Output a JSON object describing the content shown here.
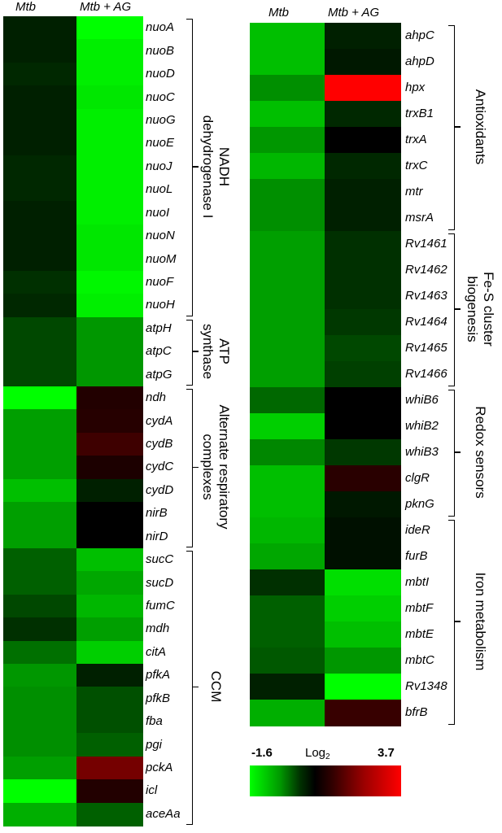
{
  "heatmap": {
    "column_headers": [
      "Mtb",
      "Mtb + AG"
    ],
    "left_panel": {
      "genes": [
        "nuoA",
        "nuoB",
        "nuoD",
        "nuoC",
        "nuoG",
        "nuoE",
        "nuoJ",
        "nuoL",
        "nuoI",
        "nuoN",
        "nuoM",
        "nuoF",
        "nuoH",
        "atpH",
        "atpC",
        "atpG",
        "ndh",
        "cydA",
        "cydB",
        "cydC",
        "cydD",
        "nirB",
        "nirD",
        "sucC",
        "sucD",
        "fumC",
        "mdh",
        "citA",
        "pfkA",
        "pfkB",
        "fba",
        "pgi",
        "pckA",
        "icl",
        "aceAa"
      ],
      "values": [
        [
          -0.2,
          -1.6
        ],
        [
          -0.2,
          -1.5
        ],
        [
          -0.25,
          -1.5
        ],
        [
          -0.2,
          -1.45
        ],
        [
          -0.2,
          -1.5
        ],
        [
          -0.2,
          -1.5
        ],
        [
          -0.25,
          -1.5
        ],
        [
          -0.25,
          -1.5
        ],
        [
          -0.2,
          -1.5
        ],
        [
          -0.2,
          -1.45
        ],
        [
          -0.2,
          -1.45
        ],
        [
          -0.3,
          -1.55
        ],
        [
          -0.25,
          -1.5
        ],
        [
          -0.45,
          -0.95
        ],
        [
          -0.45,
          -0.95
        ],
        [
          -0.45,
          -0.95
        ],
        [
          -1.6,
          0.5
        ],
        [
          -1.0,
          0.55
        ],
        [
          -1.0,
          0.9
        ],
        [
          -1.0,
          0.4
        ],
        [
          -1.2,
          -0.2
        ],
        [
          -1.0,
          0.0
        ],
        [
          -1.0,
          0.0
        ],
        [
          -0.6,
          -1.2
        ],
        [
          -0.6,
          -1.05
        ],
        [
          -0.45,
          -1.15
        ],
        [
          -0.3,
          -1.0
        ],
        [
          -0.7,
          -1.3
        ],
        [
          -0.95,
          -0.2
        ],
        [
          -0.9,
          -0.5
        ],
        [
          -0.9,
          -0.5
        ],
        [
          -0.9,
          -0.6
        ],
        [
          -1.0,
          1.7
        ],
        [
          -1.6,
          0.5
        ],
        [
          -1.1,
          -0.6
        ]
      ],
      "groups": [
        {
          "label": "NADH dehydrogenase I",
          "lines": [
            "NADH",
            "dehydrogenase I"
          ]
        },
        {
          "label": "ATP synthase",
          "lines": [
            "ATP",
            "synthase"
          ]
        },
        {
          "label": "Alternate respiratory complexes",
          "lines": [
            "Alternate respiratory",
            "complexes"
          ]
        },
        {
          "label": "CCM",
          "lines": [
            "CCM"
          ]
        }
      ]
    },
    "right_panel": {
      "genes": [
        "ahpC",
        "ahpD",
        "hpx",
        "trxB1",
        "trxA",
        "trxC",
        "mtr",
        "msrA",
        "Rv1461",
        "Rv1462",
        "Rv1463",
        "Rv1464",
        "Rv1465",
        "Rv1466",
        "whiB6",
        "whiB2",
        "whiB3",
        "clgR",
        "pknG",
        "ideR",
        "furB",
        "mbtI",
        "mbtF",
        "mbtE",
        "mbtC",
        "Rv1348",
        "bfrB"
      ],
      "values": [
        [
          -1.2,
          -0.2
        ],
        [
          -1.2,
          -0.15
        ],
        [
          -0.9,
          3.7
        ],
        [
          -1.2,
          -0.25
        ],
        [
          -0.95,
          0.0
        ],
        [
          -1.15,
          -0.25
        ],
        [
          -0.9,
          -0.2
        ],
        [
          -0.9,
          -0.2
        ],
        [
          -1.0,
          -0.3
        ],
        [
          -1.0,
          -0.3
        ],
        [
          -1.0,
          -0.3
        ],
        [
          -1.0,
          -0.35
        ],
        [
          -1.0,
          -0.45
        ],
        [
          -1.0,
          -0.4
        ],
        [
          -0.65,
          0.0
        ],
        [
          -1.3,
          0.0
        ],
        [
          -0.85,
          -0.35
        ],
        [
          -1.2,
          0.6
        ],
        [
          -1.2,
          -0.15
        ],
        [
          -1.15,
          -0.1
        ],
        [
          -1.05,
          -0.1
        ],
        [
          -0.3,
          -1.4
        ],
        [
          -0.6,
          -1.3
        ],
        [
          -0.6,
          -1.2
        ],
        [
          -0.55,
          -0.95
        ],
        [
          -0.2,
          -1.6
        ],
        [
          -1.1,
          0.8
        ]
      ],
      "groups": [
        {
          "label": "Antioxidants",
          "lines": [
            "Antioxidants"
          ]
        },
        {
          "label": "Fe-S cluster biogenesis",
          "lines": [
            "Fe-S cluster",
            "biogenesis"
          ]
        },
        {
          "label": "Redox sensors",
          "lines": [
            "Redox sensors"
          ]
        },
        {
          "label": "Iron metabolism",
          "lines": [
            "Iron metabolism"
          ]
        }
      ]
    },
    "legend": {
      "min_label": "-1.6",
      "max_label": "3.7",
      "title_main": "Log",
      "title_sub": "2",
      "min": -1.6,
      "max": 3.7,
      "colormap": [
        "#00ff00",
        "#000000",
        "#ff0000"
      ]
    }
  }
}
